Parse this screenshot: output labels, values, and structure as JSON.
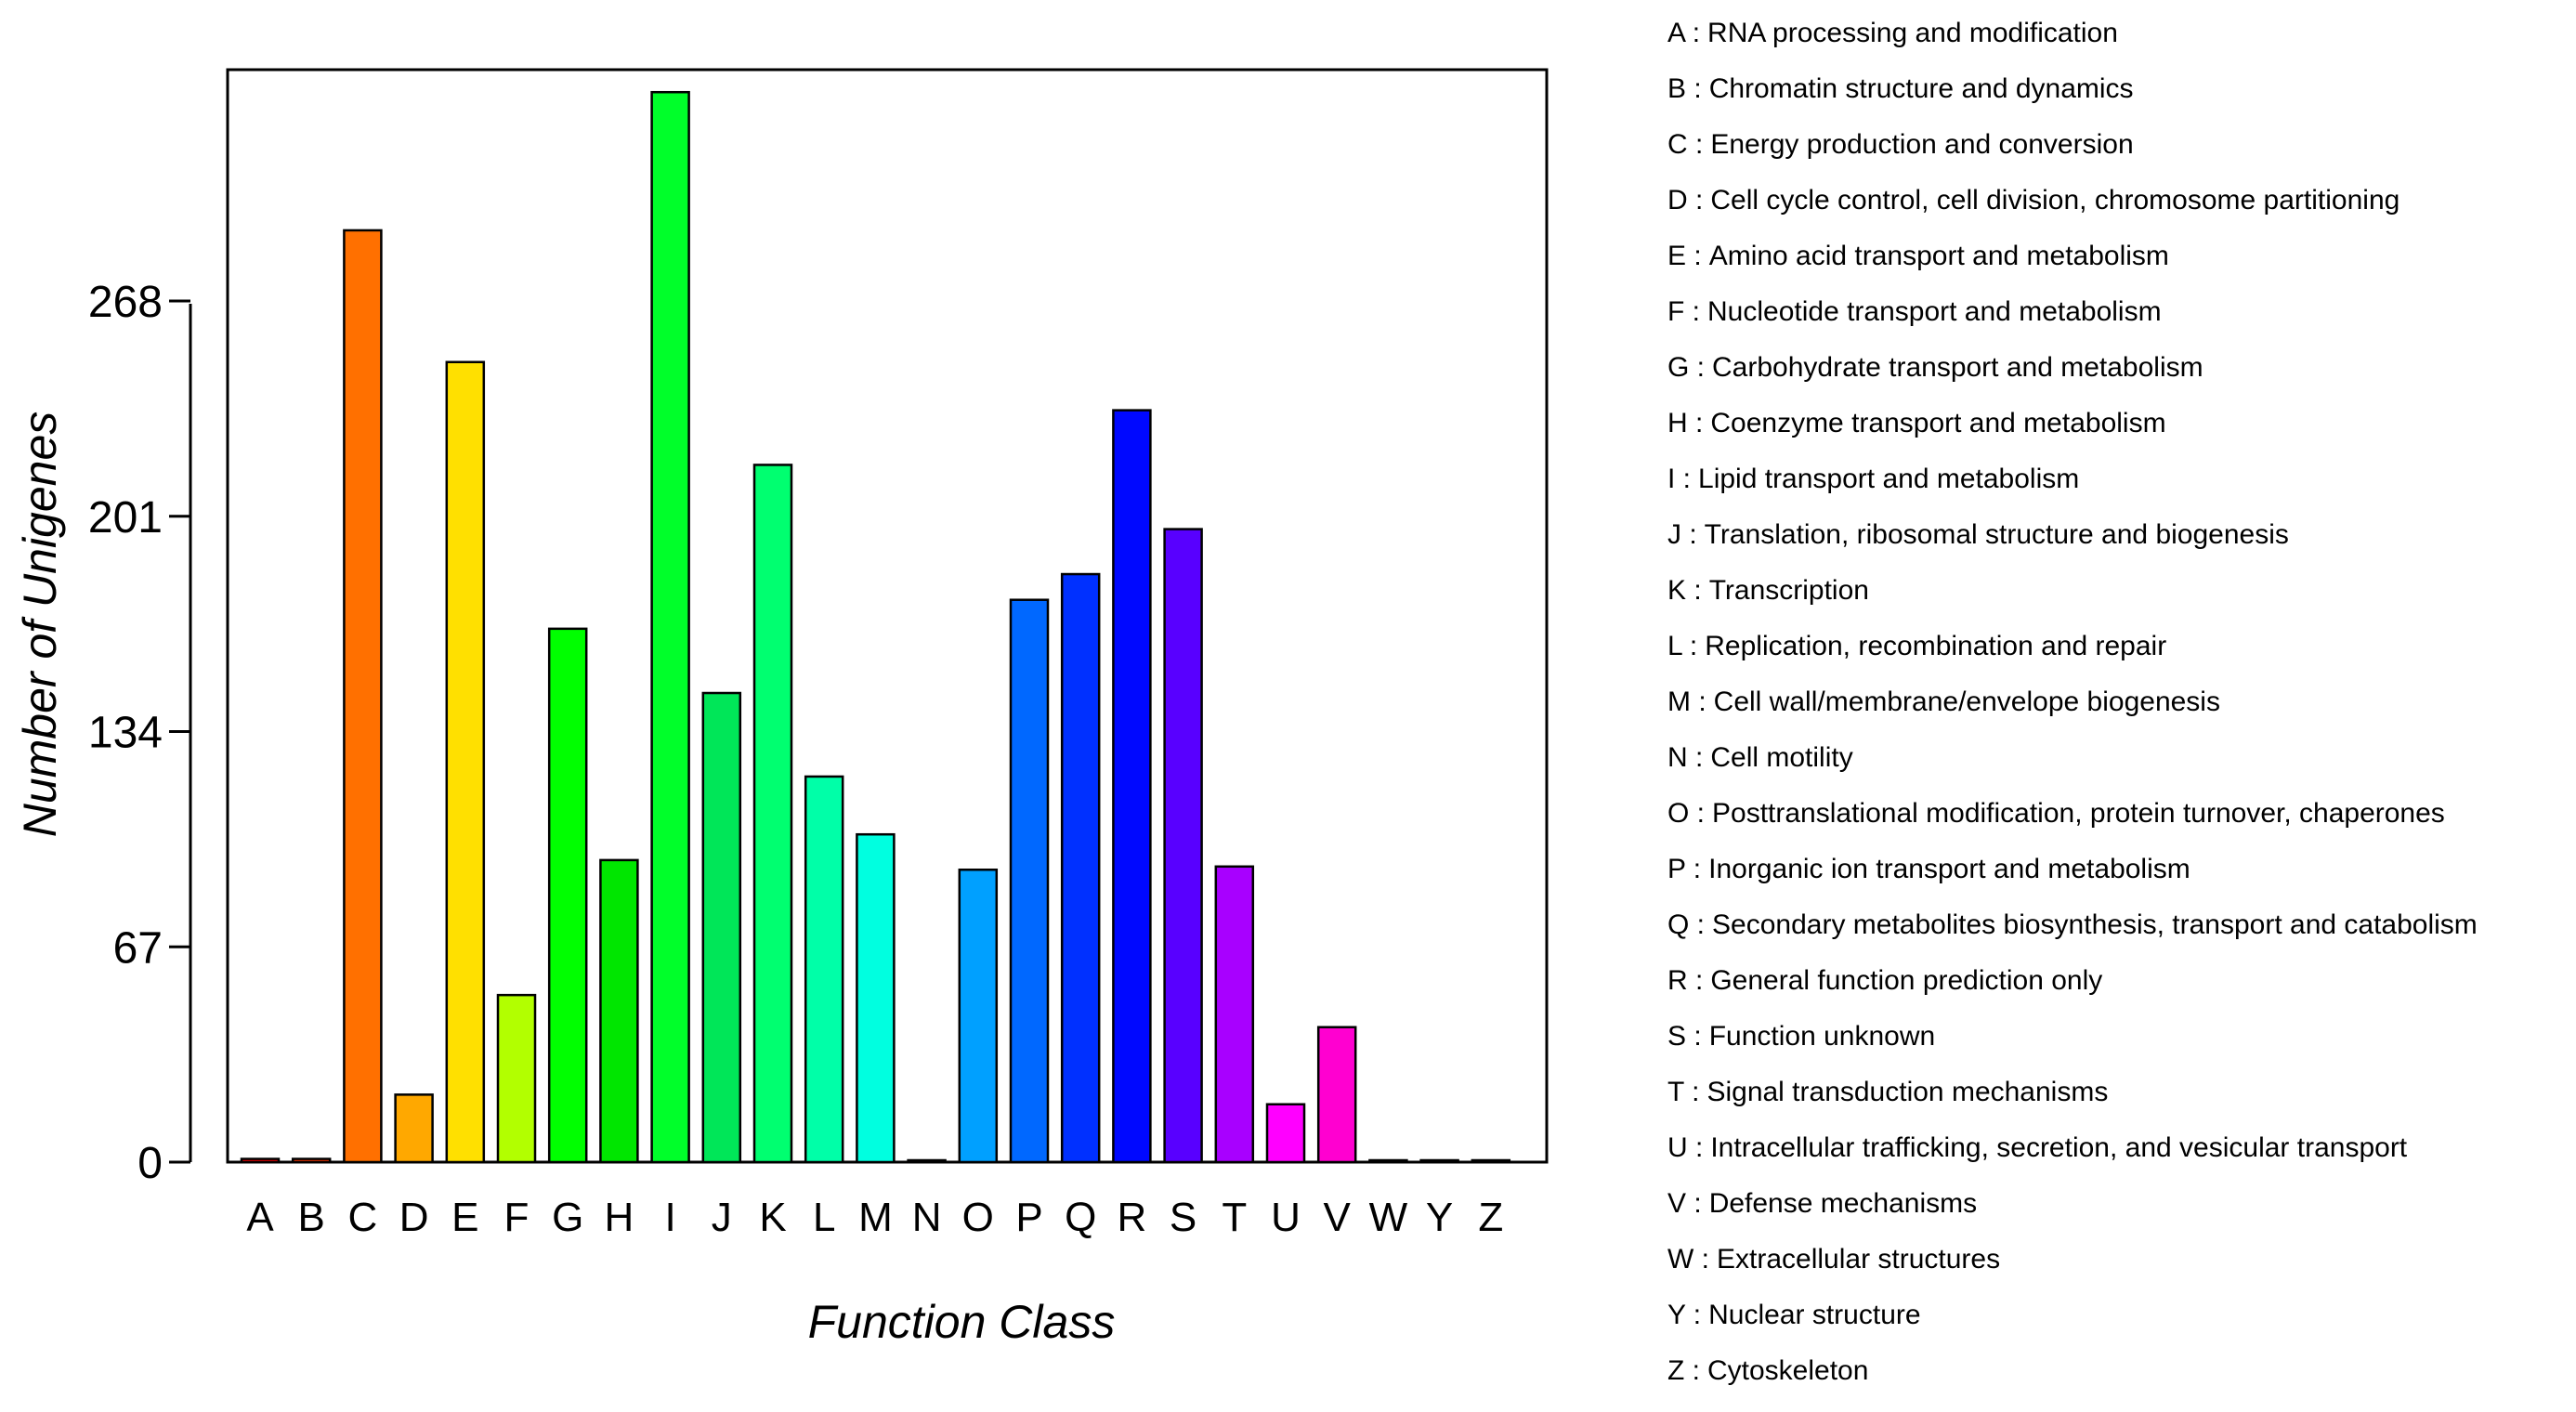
{
  "chart_data": {
    "type": "bar",
    "title": "",
    "xlabel": "Function Class",
    "ylabel": "Number of Unigenes",
    "ylim": [
      0,
      340
    ],
    "yticks": [
      0,
      67,
      134,
      201,
      268
    ],
    "grid": false,
    "categories": [
      "A",
      "B",
      "C",
      "D",
      "E",
      "F",
      "G",
      "H",
      "I",
      "J",
      "K",
      "L",
      "M",
      "N",
      "O",
      "P",
      "Q",
      "R",
      "S",
      "T",
      "U",
      "V",
      "W",
      "Y",
      "Z"
    ],
    "values": [
      1,
      1,
      290,
      21,
      249,
      52,
      166,
      94,
      333,
      146,
      217,
      120,
      102,
      0,
      91,
      175,
      183,
      234,
      197,
      92,
      18,
      42,
      0,
      0,
      0
    ],
    "colors": [
      "#ff0000",
      "#ff3500",
      "#ff7000",
      "#ffa800",
      "#ffe000",
      "#b2ff00",
      "#00ff00",
      "#00e600",
      "#00ff2a",
      "#00e658",
      "#00ff70",
      "#00ffa8",
      "#00ffe0",
      "#00d8ff",
      "#00a0ff",
      "#0068ff",
      "#0030ff",
      "#0008ff",
      "#5800ff",
      "#a800ff",
      "#ff00ff",
      "#ff00d0",
      "#ff0098",
      "#ff0060",
      "#ff0028"
    ],
    "legend": [
      {
        "key": "A :",
        "text": "RNA processing and modification"
      },
      {
        "key": "B :",
        "text": "Chromatin structure and dynamics"
      },
      {
        "key": "C :",
        "text": "Energy production and conversion"
      },
      {
        "key": "D :",
        "text": "Cell cycle control, cell division, chromosome partitioning"
      },
      {
        "key": "E :",
        "text": "Amino acid transport and metabolism"
      },
      {
        "key": "F :",
        "text": "Nucleotide transport and metabolism"
      },
      {
        "key": "G :",
        "text": "Carbohydrate transport and metabolism"
      },
      {
        "key": "H :",
        "text": "Coenzyme transport and metabolism"
      },
      {
        "key": "I :",
        "text": "Lipid transport and metabolism"
      },
      {
        "key": "J :",
        "text": "Translation, ribosomal structure and biogenesis"
      },
      {
        "key": "K :",
        "text": "Transcription"
      },
      {
        "key": "L :",
        "text": "Replication, recombination and repair"
      },
      {
        "key": "M :",
        "text": "Cell wall/membrane/envelope biogenesis"
      },
      {
        "key": "N :",
        "text": "Cell motility"
      },
      {
        "key": "O :",
        "text": "Posttranslational modification, protein turnover, chaperones"
      },
      {
        "key": "P :",
        "text": "Inorganic ion transport and metabolism"
      },
      {
        "key": "Q :",
        "text": "Secondary metabolites biosynthesis, transport and catabolism"
      },
      {
        "key": "R :",
        "text": "General function prediction only"
      },
      {
        "key": "S :",
        "text": "Function unknown"
      },
      {
        "key": "T :",
        "text": "Signal transduction mechanisms"
      },
      {
        "key": "U :",
        "text": "Intracellular trafficking, secretion, and vesicular transport"
      },
      {
        "key": "V :",
        "text": "Defense mechanisms"
      },
      {
        "key": "W :",
        "text": "Extracellular structures"
      },
      {
        "key": "Y :",
        "text": "Nuclear structure"
      },
      {
        "key": "Z :",
        "text": "Cytoskeleton"
      }
    ]
  }
}
